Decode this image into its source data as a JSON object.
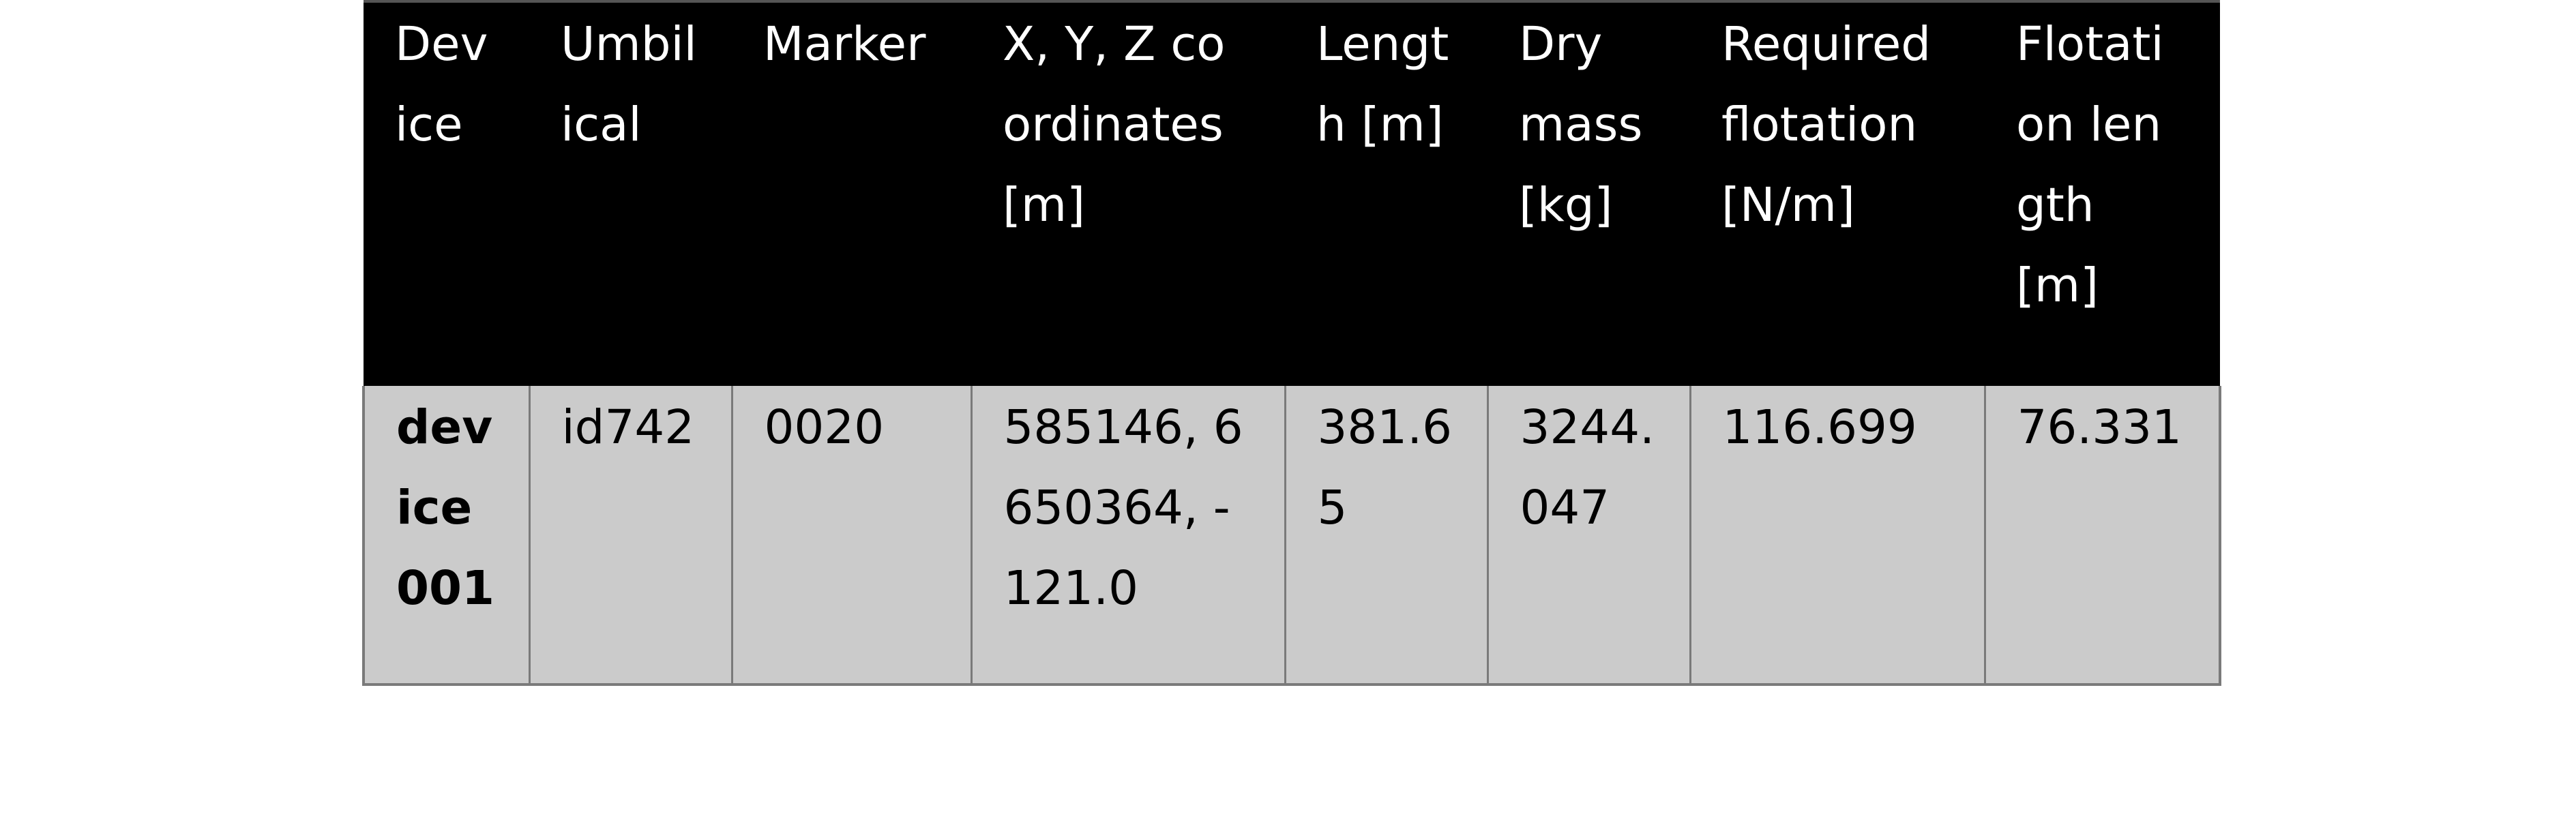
{
  "table": {
    "headers": [
      "Device",
      "Umbilical",
      "Marker",
      "X, Y, Z coordinates [m]",
      "Length [m]",
      "Dry mass [kg]",
      "Required flotation [N/m]",
      "Flotation length [m]"
    ],
    "rows": [
      {
        "cells": [
          "device001",
          "id742",
          "0020",
          "585146, 6650364, -121.0",
          "381.65",
          "3244.047",
          "116.699",
          "76.331"
        ]
      }
    ]
  }
}
